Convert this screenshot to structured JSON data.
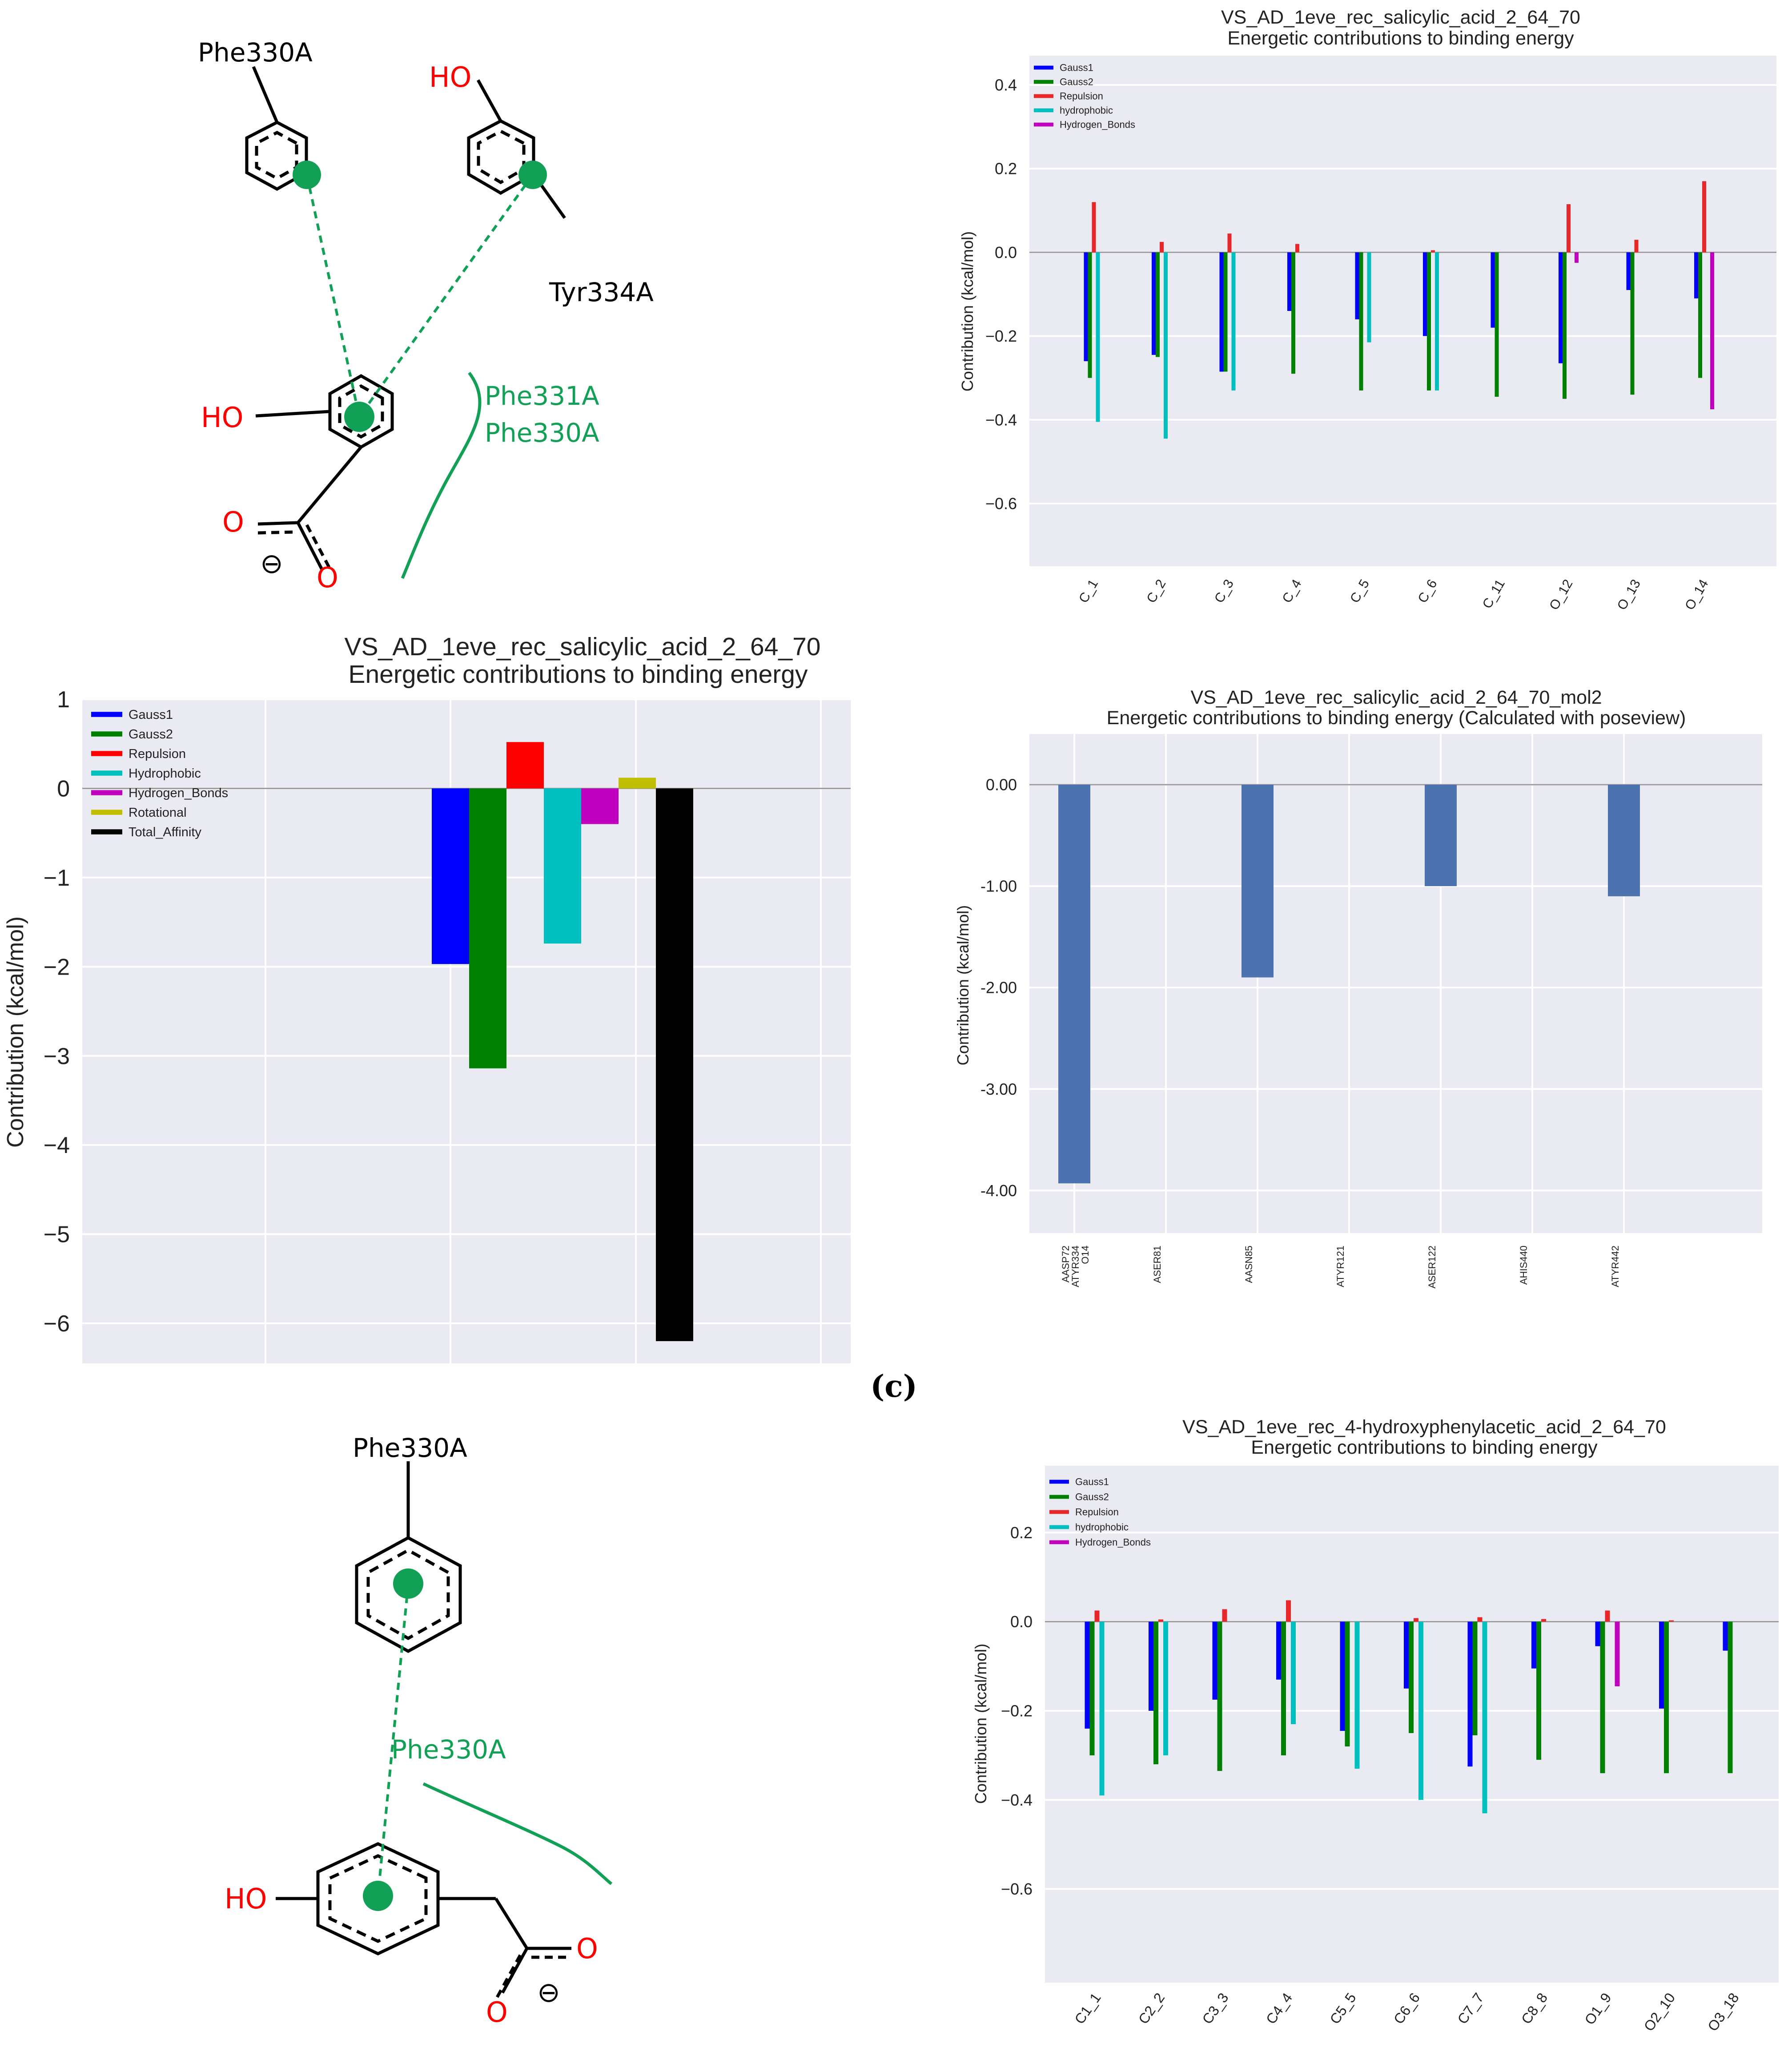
{
  "panel_label": "(c)",
  "molecules": {
    "top": {
      "residue_phe330": "Phe330A",
      "residue_tyr334": "Tyr334A",
      "ho_top": "HO",
      "ho_ligand": "HO",
      "hydrophobic_phe331": "Phe331A",
      "hydrophobic_phe330": "Phe330A",
      "oxygen_1": "O",
      "oxygen_2": "O",
      "charge": "⊖"
    },
    "bottom": {
      "residue_phe330": "Phe330A",
      "hydrophobic_phe330": "Phe330A",
      "ho_ligand": "HO",
      "oxygen_1": "O",
      "oxygen_2": "O",
      "charge": "⊖"
    }
  },
  "colors": {
    "Gauss1": "#0000ff",
    "Gauss2": "#008000",
    "Repulsion": "#ff0000",
    "Repulsion_light": "#e8272b",
    "Hydrophobic": "#00bfbf",
    "Hydrogen_Bonds": "#bf00bf",
    "Rotational": "#bfbf00",
    "Total_Affinity": "#000000",
    "poseview_bar": "#4c72b0",
    "plot_bg": "#eaeaf2",
    "interaction_green": "#12a057",
    "heteroatom_red": "#ff0000"
  },
  "chart_data": [
    {
      "id": "chart_a",
      "type": "bar",
      "title": "VS_AD_1eve_rec_salicylic_acid_2_64_70",
      "subtitle": "Energetic contributions to binding energy",
      "xlabel": "",
      "ylabel": "Contribution (kcal/mol)",
      "ylim": [
        -0.75,
        0.47
      ],
      "yticks": [
        0.4,
        0.2,
        0.0,
        -0.2,
        -0.4,
        -0.6
      ],
      "ytick_labels": [
        "0.4",
        "0.2",
        "0.0",
        "−0.2",
        "−0.4",
        "−0.6"
      ],
      "categories": [
        "C_1",
        "C_2",
        "C_3",
        "C_4",
        "C_5",
        "C_6",
        "C_11",
        "O_12",
        "O_13",
        "O_14"
      ],
      "legend_position": "upper-left",
      "series": [
        {
          "name": "Gauss1",
          "color_key": "Gauss1",
          "values": [
            -0.26,
            -0.245,
            -0.285,
            -0.14,
            -0.16,
            -0.2,
            -0.18,
            -0.265,
            -0.09,
            -0.11
          ]
        },
        {
          "name": "Gauss2",
          "color_key": "Gauss2",
          "values": [
            -0.3,
            -0.25,
            -0.285,
            -0.29,
            -0.33,
            -0.33,
            -0.345,
            -0.35,
            -0.34,
            -0.3
          ]
        },
        {
          "name": "Repulsion",
          "color_key": "Repulsion_light",
          "values": [
            0.12,
            0.025,
            0.045,
            0.02,
            0.0,
            0.005,
            0.0,
            0.115,
            0.03,
            0.17
          ]
        },
        {
          "name": "hydrophobic",
          "color_key": "Hydrophobic",
          "values": [
            -0.405,
            -0.445,
            -0.33,
            0.0,
            -0.215,
            -0.33,
            0.0,
            0.0,
            0.0,
            0.0
          ]
        },
        {
          "name": "Hydrogen_Bonds",
          "color_key": "Hydrogen_Bonds",
          "values": [
            0.0,
            0.0,
            0.0,
            0.0,
            0.0,
            0.0,
            0.0,
            -0.025,
            0.0,
            -0.375
          ]
        }
      ]
    },
    {
      "id": "chart_b",
      "type": "bar",
      "title": "VS_AD_1eve_rec_salicylic_acid_2_64_70",
      "subtitle": "Energetic contributions to binding energy",
      "xlabel": "",
      "ylabel": "Contribution (kcal/mol)",
      "ylim": [
        -6.45,
        1.0
      ],
      "yticks": [
        1,
        0,
        -1,
        -2,
        -3,
        -4,
        -5,
        -6
      ],
      "ytick_labels": [
        "1",
        "0",
        "−1",
        "−2",
        "−3",
        "−4",
        "−5",
        "−6"
      ],
      "legend_position": "upper-left",
      "series": [
        {
          "name": "Gauss1",
          "color_key": "Gauss1",
          "value": -1.97
        },
        {
          "name": "Gauss2",
          "color_key": "Gauss2",
          "value": -3.14
        },
        {
          "name": "Repulsion",
          "color_key": "Repulsion",
          "value": 0.52
        },
        {
          "name": "Hydrophobic",
          "color_key": "Hydrophobic",
          "value": -1.74
        },
        {
          "name": "Hydrogen_Bonds",
          "color_key": "Hydrogen_Bonds",
          "value": -0.4
        },
        {
          "name": "Rotational",
          "color_key": "Rotational",
          "value": 0.12
        },
        {
          "name": "Total_Affinity",
          "color_key": "Total_Affinity",
          "value": -6.2
        }
      ]
    },
    {
      "id": "chart_c",
      "type": "bar",
      "title": "VS_AD_1eve_rec_salicylic_acid_2_64_70_mol2",
      "subtitle": "Energetic contributions to binding energy (Calculated with poseview)",
      "xlabel": "",
      "ylabel": "Contribution (kcal/mol)",
      "ylim": [
        -4.42,
        0.5
      ],
      "yticks": [
        0.0,
        -1.0,
        -2.0,
        -3.0,
        -4.0
      ],
      "ytick_labels": [
        "0.00",
        "-1.00",
        "-2.00",
        "-3.00",
        "-4.00"
      ],
      "categories": [
        "AASP72\nATYR334\nO14",
        "ASER81",
        "AASN85",
        "ATYR121",
        "ASER122",
        "AHIS440",
        "ATYR442"
      ],
      "values": [
        -3.93,
        0.0,
        -1.9,
        0.0,
        -1.0,
        0.0,
        -1.1
      ]
    },
    {
      "id": "chart_d",
      "type": "bar",
      "title": "VS_AD_1eve_rec_4-hydroxyphenylacetic_acid_2_64_70",
      "subtitle": "Energetic contributions to binding energy",
      "xlabel": "",
      "ylabel": "Contribution (kcal/mol)",
      "ylim": [
        -0.81,
        0.35
      ],
      "yticks": [
        0.2,
        0.0,
        -0.2,
        -0.4,
        -0.6
      ],
      "ytick_labels": [
        "0.2",
        "0.0",
        "−0.2",
        "−0.4",
        "−0.6"
      ],
      "categories": [
        "C1_1",
        "C2_2",
        "C3_3",
        "C4_4",
        "C5_5",
        "C6_6",
        "C7_7",
        "C8_8",
        "O1_9",
        "O2_10",
        "O3_18"
      ],
      "legend_position": "upper-left",
      "series": [
        {
          "name": "Gauss1",
          "color_key": "Gauss1",
          "values": [
            -0.24,
            -0.2,
            -0.175,
            -0.13,
            -0.245,
            -0.15,
            -0.325,
            -0.105,
            -0.055,
            -0.195,
            -0.065
          ]
        },
        {
          "name": "Gauss2",
          "color_key": "Gauss2",
          "values": [
            -0.3,
            -0.32,
            -0.335,
            -0.3,
            -0.28,
            -0.25,
            -0.255,
            -0.31,
            -0.34,
            -0.34,
            -0.34
          ]
        },
        {
          "name": "Repulsion",
          "color_key": "Repulsion_light",
          "values": [
            0.025,
            0.005,
            0.028,
            0.048,
            0.0,
            0.008,
            0.01,
            0.006,
            0.025,
            0.003,
            0.0
          ]
        },
        {
          "name": "hydrophobic",
          "color_key": "Hydrophobic",
          "values": [
            -0.39,
            -0.3,
            0.0,
            -0.23,
            -0.33,
            -0.4,
            -0.43,
            0.0,
            0.0,
            0.0,
            0.0
          ]
        },
        {
          "name": "Hydrogen_Bonds",
          "color_key": "Hydrogen_Bonds",
          "values": [
            0.0,
            0.0,
            0.0,
            0.0,
            0.0,
            0.0,
            0.0,
            0.0,
            -0.145,
            0.0,
            0.0
          ]
        }
      ]
    }
  ]
}
